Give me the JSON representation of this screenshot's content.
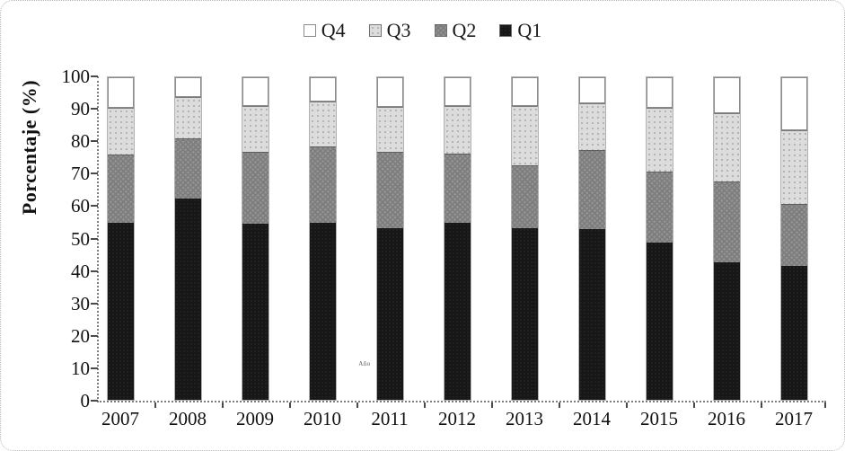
{
  "figure": {
    "y_axis_title": "Porcentaje (%)",
    "x_axis_title": "Año"
  },
  "chart_data": {
    "type": "bar",
    "stacked": true,
    "title": "",
    "categories": [
      "2007",
      "2008",
      "2009",
      "2010",
      "2011",
      "2012",
      "2013",
      "2014",
      "2015",
      "2016",
      "2017"
    ],
    "series": [
      {
        "name": "Q1",
        "color": "#171717",
        "pattern": "dark-dotted",
        "values": [
          55.0,
          62.5,
          54.5,
          55.0,
          53.3,
          54.8,
          53.2,
          52.8,
          48.7,
          42.6,
          41.5
        ]
      },
      {
        "name": "Q2",
        "color": "#929292",
        "pattern": "gray-crosshatch",
        "values": [
          21.0,
          18.5,
          22.5,
          23.5,
          23.5,
          21.6,
          19.6,
          24.6,
          22.1,
          25.0,
          19.1
        ]
      },
      {
        "name": "Q3",
        "color": "#dcdcdc",
        "pattern": "light-dotted",
        "values": [
          14.5,
          13.0,
          14.0,
          14.0,
          14.0,
          14.8,
          18.2,
          14.6,
          19.7,
          21.3,
          22.9
        ]
      },
      {
        "name": "Q4",
        "color": "#ffffff",
        "pattern": "white",
        "values": [
          9.5,
          6.0,
          9.0,
          7.5,
          9.2,
          8.8,
          9.0,
          8.0,
          9.5,
          11.1,
          16.5
        ]
      }
    ],
    "cumulative_tops": {
      "Q1": [
        55.0,
        62.5,
        54.5,
        55.0,
        53.3,
        54.8,
        53.2,
        52.8,
        48.7,
        42.6,
        41.5
      ],
      "Q2": [
        76.0,
        81.0,
        77.0,
        78.5,
        76.8,
        76.4,
        72.8,
        77.4,
        70.8,
        67.6,
        60.6
      ],
      "Q3": [
        90.5,
        94.0,
        91.0,
        92.5,
        90.8,
        91.2,
        91.0,
        92.0,
        90.5,
        88.9,
        83.5
      ],
      "Q4": [
        100,
        100,
        100,
        100,
        100,
        100,
        100,
        100,
        100,
        100,
        100
      ]
    },
    "legend": {
      "position": "top",
      "order": [
        "Q4",
        "Q3",
        "Q2",
        "Q1"
      ]
    },
    "ylabel": "Porcentaje (%)",
    "xlabel": "Año",
    "ylim": [
      0,
      100
    ],
    "yticks": [
      0,
      10,
      20,
      30,
      40,
      50,
      60,
      70,
      80,
      90,
      100
    ],
    "grid": false
  }
}
